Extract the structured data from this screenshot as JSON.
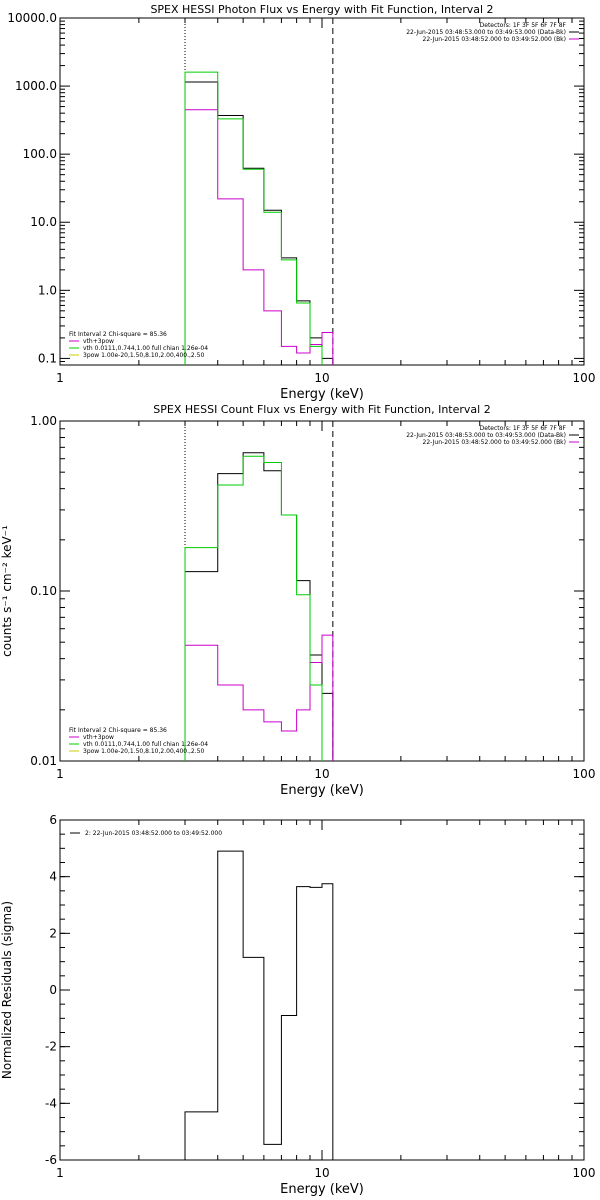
{
  "chart_data": [
    {
      "type": "line",
      "title": "SPEX HESSI Photon Flux vs Energy with Fit Function, Interval 2",
      "xlabel": "Energy (keV)",
      "ylabel": "",
      "xscale": "log",
      "yscale": "log",
      "xlim": [
        1,
        100
      ],
      "ylim": [
        0.08,
        10000
      ],
      "x_ticks": [
        {
          "v": 1,
          "t": "1"
        },
        {
          "v": 10,
          "t": "10"
        },
        {
          "v": 100,
          "t": "100"
        }
      ],
      "y_ticks": [
        {
          "v": 0.1,
          "t": "0.1"
        },
        {
          "v": 1,
          "t": "1.0"
        },
        {
          "v": 10,
          "t": "10.0"
        },
        {
          "v": 100,
          "t": "100.0"
        },
        {
          "v": 1000,
          "t": "1000.0"
        },
        {
          "v": 10000,
          "t": "10000.0"
        }
      ],
      "vlines": [
        {
          "x": 3,
          "style": "dotted"
        },
        {
          "x": 11,
          "style": "dashed"
        }
      ],
      "legend_right": [
        {
          "text": "Detectors: 1F 3F 5F 6F 7F 8F",
          "color": ""
        },
        {
          "text": "22-Jun-2015 03:48:53.000 to 03:49:53.000 (Data-Bk)",
          "color": "#000000"
        },
        {
          "text": "22-Jun-2015 03:48:52.000 to 03:49:52.000 (Bk)",
          "color": "#cc00cc"
        }
      ],
      "legend_left": [
        {
          "text": "Fit Interval 2   Chi-square = 85.36",
          "color": ""
        },
        {
          "text": "vth+3pow",
          "color": "#cc00cc"
        },
        {
          "text": "vth 0.0111,0.744,1.00  full chian 1.26e-04",
          "color": "#00cc00"
        },
        {
          "text": "3pow 1.00e-20,1.50,8.10,2.00,400.,2.50",
          "color": "#cccc00"
        }
      ],
      "series": [
        {
          "color": "#000000",
          "edges": [
            3,
            4,
            5,
            6,
            7,
            8,
            9,
            10,
            11
          ],
          "values": [
            1150,
            370,
            62,
            15,
            3,
            0.7,
            0.2,
            0.1
          ]
        },
        {
          "color": "#cc00cc",
          "edges": [
            3,
            4,
            5,
            6,
            7,
            8,
            9,
            10,
            11
          ],
          "values": [
            450,
            22,
            2,
            0.5,
            0.15,
            0.12,
            0.16,
            0.24
          ]
        },
        {
          "color": "#00cc00",
          "edges": [
            3,
            4,
            5,
            6,
            7,
            8,
            9,
            10
          ],
          "values": [
            1600,
            330,
            60,
            14,
            2.8,
            0.65,
            0.15
          ]
        }
      ]
    },
    {
      "type": "line",
      "title": "SPEX HESSI Count Flux vs Energy with Fit Function, Interval 2",
      "xlabel": "Energy (keV)",
      "ylabel": "counts s⁻¹ cm⁻² keV⁻¹",
      "xscale": "log",
      "yscale": "log",
      "xlim": [
        1,
        100
      ],
      "ylim": [
        0.01,
        1
      ],
      "x_ticks": [
        {
          "v": 1,
          "t": "1"
        },
        {
          "v": 10,
          "t": "10"
        },
        {
          "v": 100,
          "t": "100"
        }
      ],
      "y_ticks": [
        {
          "v": 0.01,
          "t": "0.01"
        },
        {
          "v": 0.1,
          "t": "0.10"
        },
        {
          "v": 1,
          "t": "1.00"
        }
      ],
      "vlines": [
        {
          "x": 3,
          "style": "dotted"
        },
        {
          "x": 11,
          "style": "dashed"
        }
      ],
      "legend_right": [
        {
          "text": "Detectors: 1F 3F 5F 6F 7F 8F",
          "color": ""
        },
        {
          "text": "22-Jun-2015 03:48:53.000 to 03:49:53.000 (Data-Bk)",
          "color": "#000000"
        },
        {
          "text": "22-Jun-2015 03:48:52.000 to 03:49:52.000 (Bk)",
          "color": "#cc00cc"
        }
      ],
      "legend_left": [
        {
          "text": "Fit Interval 2   Chi-square = 85.36",
          "color": ""
        },
        {
          "text": "vth+3pow",
          "color": "#cc00cc"
        },
        {
          "text": "vth 0.0111,0.744,1.00  full chian 1.26e-04",
          "color": "#00cc00"
        },
        {
          "text": "3pow 1.00e-20,1.50,8.10,2.00,400.,2.50",
          "color": "#cccc00"
        }
      ],
      "series": [
        {
          "color": "#000000",
          "edges": [
            3,
            4,
            5,
            6,
            7,
            8,
            9,
            10,
            11
          ],
          "values": [
            0.13,
            0.49,
            0.65,
            0.51,
            0.28,
            0.115,
            0.042,
            0.025
          ]
        },
        {
          "color": "#cc00cc",
          "edges": [
            3,
            4,
            5,
            6,
            7,
            8,
            9,
            10,
            11
          ],
          "values": [
            0.048,
            0.028,
            0.02,
            0.017,
            0.015,
            0.02,
            0.038,
            0.055
          ]
        },
        {
          "color": "#00cc00",
          "edges": [
            3,
            4,
            5,
            6,
            7,
            8,
            9,
            10
          ],
          "values": [
            0.18,
            0.42,
            0.62,
            0.57,
            0.28,
            0.095,
            0.028
          ]
        }
      ]
    },
    {
      "type": "line",
      "title": "",
      "xlabel": "Energy (keV)",
      "ylabel": "Normalized Residuals (sigma)",
      "xscale": "log",
      "yscale": "linear",
      "xlim": [
        1,
        100
      ],
      "ylim": [
        -6,
        6
      ],
      "x_ticks": [
        {
          "v": 1,
          "t": "1"
        },
        {
          "v": 10,
          "t": "10"
        },
        {
          "v": 100,
          "t": "100"
        }
      ],
      "y_ticks": [
        {
          "v": -6,
          "t": "-6"
        },
        {
          "v": -4,
          "t": "-4"
        },
        {
          "v": -2,
          "t": "-2"
        },
        {
          "v": 0,
          "t": "0"
        },
        {
          "v": 2,
          "t": "2"
        },
        {
          "v": 4,
          "t": "4"
        },
        {
          "v": 6,
          "t": "6"
        }
      ],
      "vlines": [],
      "legend_right": [],
      "legend_left": [],
      "legend_top": [
        {
          "text": "2: 22-Jun-2015 03:48:52.000 to 03:49:52.000",
          "color": "#000000"
        }
      ],
      "series": [
        {
          "color": "#000000",
          "edges": [
            3,
            4,
            5,
            6,
            7,
            8,
            9,
            10,
            11
          ],
          "values": [
            -4.3,
            4.9,
            1.15,
            -5.45,
            -0.9,
            3.65,
            3.62,
            3.75
          ]
        }
      ]
    }
  ]
}
